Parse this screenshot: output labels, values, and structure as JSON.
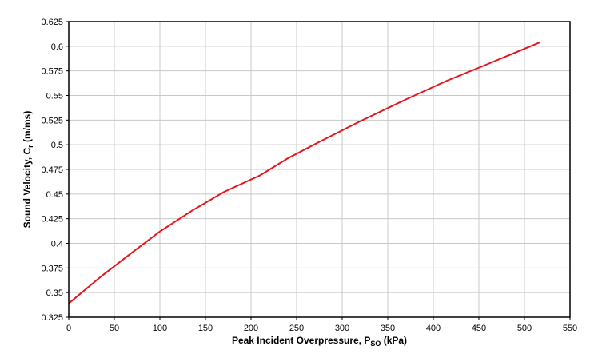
{
  "chart_data": {
    "type": "line",
    "title": "",
    "xlabel": {
      "main": "Peak Incident Overpressure, P",
      "sub": "SO",
      "tail": " (kPa)"
    },
    "ylabel": {
      "main": "Sound Velocity, C",
      "sub": "r",
      "tail": " (m/ms)"
    },
    "xlim": [
      0,
      550
    ],
    "ylim": [
      0.325,
      0.625
    ],
    "xticks": [
      0,
      50,
      100,
      150,
      200,
      250,
      300,
      350,
      400,
      450,
      500,
      550
    ],
    "yticks": [
      0.325,
      0.35,
      0.375,
      0.4,
      0.425,
      0.45,
      0.475,
      0.5,
      0.525,
      0.55,
      0.575,
      0.6,
      0.625
    ],
    "xtick_labels": [
      "0",
      "50",
      "100",
      "150",
      "200",
      "250",
      "300",
      "350",
      "400",
      "450",
      "500",
      "550"
    ],
    "ytick_labels": [
      "0.325",
      "0.35",
      "0.375",
      "0.4",
      "0.425",
      "0.45",
      "0.475",
      "0.5",
      "0.525",
      "0.55",
      "0.575",
      "0.6",
      "0.625"
    ],
    "grid": true,
    "series": [
      {
        "color": "#e8141b",
        "x": [
          0,
          35,
          70,
          100,
          135,
          170,
          210,
          240,
          275,
          320,
          370,
          415,
          460,
          517
        ],
        "y": [
          0.339,
          0.366,
          0.391,
          0.412,
          0.433,
          0.452,
          0.469,
          0.486,
          0.503,
          0.524,
          0.546,
          0.565,
          0.582,
          0.604
        ]
      }
    ]
  }
}
